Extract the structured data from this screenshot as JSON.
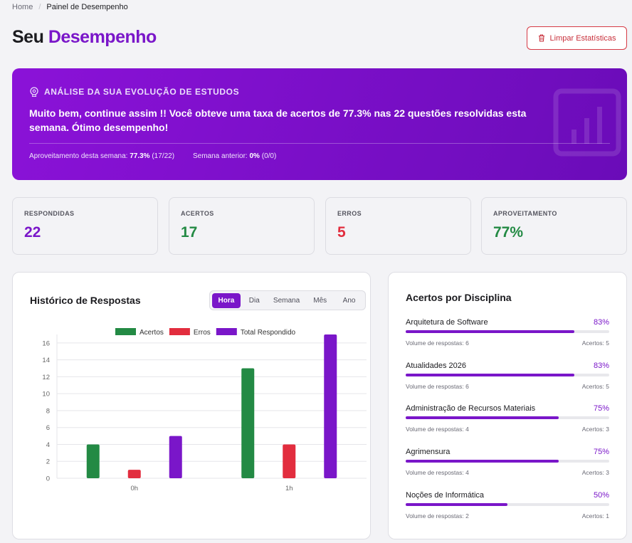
{
  "breadcrumb": {
    "home": "Home",
    "separator": "/",
    "current": "Painel de Desempenho"
  },
  "title": {
    "prefix": "Seu",
    "accent": "Desempenho"
  },
  "actions": {
    "clear_label": "Limpar Estatísticas",
    "clear_icon": "trash-icon"
  },
  "colors": {
    "accent": "#7a16c9",
    "success": "#238a44",
    "danger": "#e22d3e",
    "danger_text": "#c8303b"
  },
  "banner": {
    "icon": "brain-icon",
    "kicker": "ANÁLISE DA SUA EVOLUÇÃO DE ESTUDOS",
    "message": "Muito bem, continue assim !! Você obteve uma taxa de acertos de 77.3% nas 22 questões resolvidas esta semana. Ótimo desempenho!",
    "this_week_label": "Aproveitamento desta semana:",
    "this_week_value": "77.3%",
    "this_week_detail": "(17/22)",
    "last_week_label": "Semana anterior:",
    "last_week_value": "0%",
    "last_week_detail": "(0/0)"
  },
  "stats": [
    {
      "label": "RESPONDIDAS",
      "value": "22",
      "color": "#7a16c9"
    },
    {
      "label": "ACERTOS",
      "value": "17",
      "color": "#238a44"
    },
    {
      "label": "ERROS",
      "value": "5",
      "color": "#e22d3e"
    },
    {
      "label": "APROVEITAMENTO",
      "value": "77%",
      "color": "#238a44"
    }
  ],
  "history": {
    "title": "Histórico de Respostas",
    "tabs": [
      "Hora",
      "Dia",
      "Semana",
      "Mês",
      "Ano"
    ],
    "active_tab": "Hora"
  },
  "chart_data": {
    "type": "bar",
    "categories": [
      "0h",
      "1h"
    ],
    "series": [
      {
        "name": "Acertos",
        "values": [
          4,
          13
        ],
        "color": "#238a44"
      },
      {
        "name": "Erros",
        "values": [
          1,
          4
        ],
        "color": "#e22d3e"
      },
      {
        "name": "Total Respondido",
        "values": [
          5,
          17
        ],
        "color": "#7a16c9"
      }
    ],
    "ylim": [
      0,
      17
    ],
    "yticks": [
      0,
      2,
      4,
      6,
      8,
      10,
      12,
      14,
      16
    ],
    "legend": "top",
    "grid": true
  },
  "disciplines": {
    "title": "Acertos por Disciplina",
    "volume_label": "Volume de respostas:",
    "hits_label": "Acertos:",
    "items": [
      {
        "name": "Arquitetura de Software",
        "pct": "83%",
        "fraction": 0.83,
        "volume": "6",
        "hits": "5"
      },
      {
        "name": "Atualidades 2026",
        "pct": "83%",
        "fraction": 0.83,
        "volume": "6",
        "hits": "5"
      },
      {
        "name": "Administração de Recursos Materiais",
        "pct": "75%",
        "fraction": 0.75,
        "volume": "4",
        "hits": "3"
      },
      {
        "name": "Agrimensura",
        "pct": "75%",
        "fraction": 0.75,
        "volume": "4",
        "hits": "3"
      },
      {
        "name": "Noções de Informática",
        "pct": "50%",
        "fraction": 0.5,
        "volume": "2",
        "hits": "1"
      }
    ]
  }
}
